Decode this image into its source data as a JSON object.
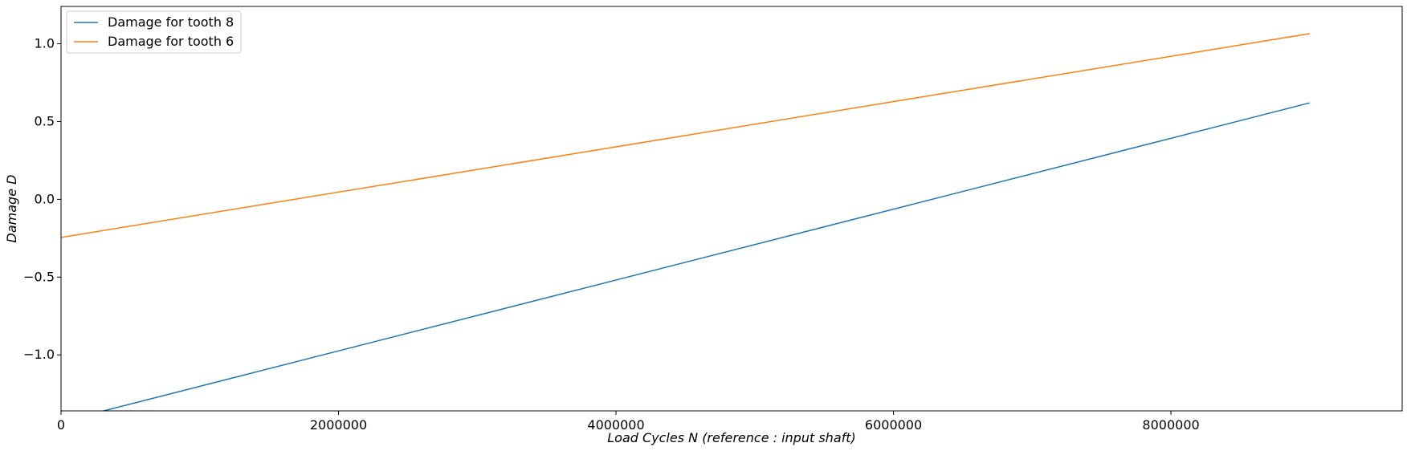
{
  "chart_data": {
    "type": "line",
    "xlabel": "Load Cycles N (reference : input shaft)",
    "ylabel": "Damage D",
    "xlim": [
      0,
      9666666
    ],
    "ylim": [
      -1.36,
      1.24
    ],
    "xticks": [
      0,
      2000000,
      4000000,
      6000000,
      8000000
    ],
    "xtick_labels": [
      "0",
      "2000000",
      "4000000",
      "6000000",
      "8000000"
    ],
    "yticks": [
      -1.0,
      -0.5,
      0.0,
      0.5,
      1.0
    ],
    "ytick_labels": [
      "−1.0",
      "−0.5",
      "0.0",
      "0.5",
      "1.0"
    ],
    "grid": false,
    "legend_position": "top-left",
    "series": [
      {
        "name": "Damage for tooth 8",
        "color": "#1f77b4",
        "x": [
          0,
          9000000
        ],
        "y": [
          -1.43,
          0.62
        ]
      },
      {
        "name": "Damage for tooth 6",
        "color": "#ff7f0e",
        "x": [
          0,
          9000000
        ],
        "y": [
          -0.245,
          1.065
        ]
      }
    ]
  }
}
